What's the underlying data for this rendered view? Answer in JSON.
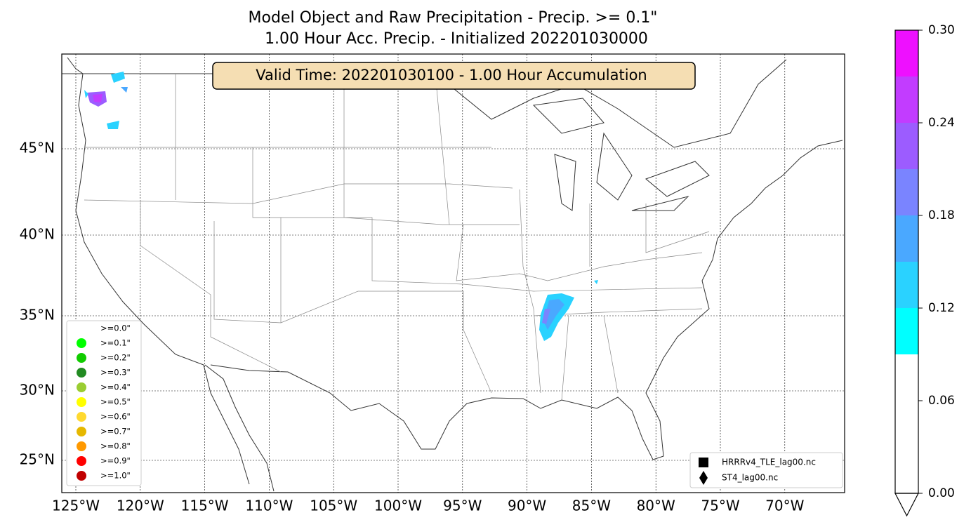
{
  "title": [
    "Model Object and Raw Precipitation - Precip. >= 0.1\"",
    "1.00 Hour Acc. Precip. - Initialized 202201030000"
  ],
  "valid_time": "Valid Time: 202201030100 - 1.00 Hour Accumulation",
  "map": {
    "lat_ticks": [
      {
        "value": 45,
        "label": "45°N"
      },
      {
        "value": 40,
        "label": "40°N"
      },
      {
        "value": 35,
        "label": "35°N"
      },
      {
        "value": 30,
        "label": "30°N"
      },
      {
        "value": 25,
        "label": "25°N"
      }
    ],
    "lon_ticks": [
      {
        "value": -125,
        "label": "125°W"
      },
      {
        "value": -120,
        "label": "120°W"
      },
      {
        "value": -115,
        "label": "115°W"
      },
      {
        "value": -110,
        "label": "110°W"
      },
      {
        "value": -105,
        "label": "105°W"
      },
      {
        "value": -100,
        "label": "100°W"
      },
      {
        "value": -95,
        "label": "95°W"
      },
      {
        "value": -90,
        "label": "90°W"
      },
      {
        "value": -85,
        "label": "85°W"
      },
      {
        "value": -80,
        "label": "80°W"
      },
      {
        "value": -75,
        "label": "75°W"
      },
      {
        "value": -70,
        "label": "70°W"
      }
    ]
  },
  "threshold_legend": [
    {
      "label": ">=0.0\"",
      "color": "#ffffff"
    },
    {
      "label": ">=0.1\"",
      "color": "#00ff00"
    },
    {
      "label": ">=0.2\"",
      "color": "#11cc00"
    },
    {
      "label": ">=0.3\"",
      "color": "#228b22"
    },
    {
      "label": ">=0.4\"",
      "color": "#9acd32"
    },
    {
      "label": ">=0.5\"",
      "color": "#ffff00"
    },
    {
      "label": ">=0.6\"",
      "color": "#ffd92f"
    },
    {
      "label": ">=0.7\"",
      "color": "#e6b800"
    },
    {
      "label": ">=0.8\"",
      "color": "#ff9900"
    },
    {
      "label": ">=0.9\"",
      "color": "#ff0000"
    },
    {
      "label": ">=1.0\"",
      "color": "#c00000"
    }
  ],
  "file_legend": [
    {
      "label": "HRRRv4_TLE_lag00.nc",
      "marker": "square"
    },
    {
      "label": "ST4_lag00.nc",
      "marker": "diamond"
    }
  ],
  "colorbar": {
    "lim": [
      0,
      0.3
    ],
    "ticks": [
      {
        "value": 0,
        "label": "0.00"
      },
      {
        "value": 0.06,
        "label": "0.06"
      },
      {
        "value": 0.12,
        "label": "0.12"
      },
      {
        "value": 0.18,
        "label": "0.18"
      },
      {
        "value": 0.24,
        "label": "0.24"
      },
      {
        "value": 0.3,
        "label": "0.30"
      }
    ],
    "bounds": [
      0,
      0.09,
      0.12,
      0.15,
      0.18,
      0.21,
      0.24,
      0.27,
      0.3
    ],
    "colors": [
      "#ffffff",
      "#00ffff",
      "#2ad2ff",
      "#4aa8ff",
      "#7a84ff",
      "#9c5cff",
      "#c23cff",
      "#ee10ff"
    ]
  }
}
